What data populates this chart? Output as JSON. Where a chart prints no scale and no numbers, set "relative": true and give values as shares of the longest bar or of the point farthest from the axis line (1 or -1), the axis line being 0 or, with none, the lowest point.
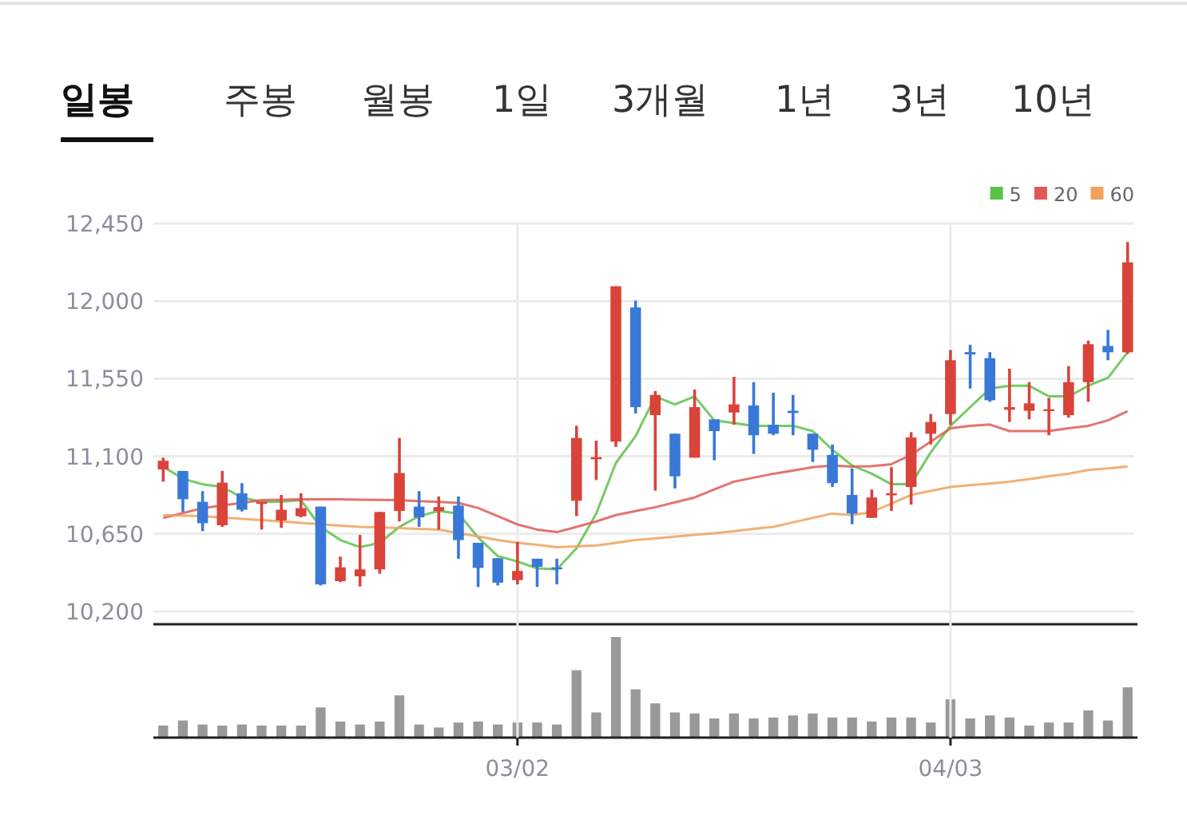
{
  "chart_data": [
    {
      "type": "candlestick",
      "annotations": [
        "일봉",
        "주봉",
        "월봉",
        "1일",
        "3개월",
        "1년",
        "3년",
        "10년"
      ],
      "categories": [
        null,
        null,
        null,
        null,
        null,
        null,
        null,
        null,
        null,
        null,
        null,
        null,
        null,
        null,
        null,
        null,
        null,
        null,
        null,
        null,
        null,
        null,
        null,
        null,
        null,
        null,
        null,
        null,
        null,
        null,
        null,
        null,
        null,
        null,
        null,
        null,
        null,
        null,
        null,
        null,
        null,
        null,
        null,
        null,
        null,
        null,
        null,
        null,
        null,
        null
      ],
      "ohlc": [
        [
          11024,
          11092,
          10953,
          11074
        ],
        [
          11015,
          11015,
          10777,
          10851
        ],
        [
          10836,
          10898,
          10666,
          10712
        ],
        [
          10700,
          11015,
          10691,
          10947
        ],
        [
          10885,
          10944,
          10780,
          10790
        ],
        [
          10824,
          10836,
          10675,
          10836
        ],
        [
          10728,
          10876,
          10685,
          10790
        ],
        [
          10752,
          10885,
          10746,
          10799
        ],
        [
          10808,
          10808,
          10351,
          10357
        ],
        [
          10376,
          10518,
          10370,
          10456
        ],
        [
          10404,
          10644,
          10345,
          10444
        ],
        [
          10444,
          10777,
          10419,
          10777
        ],
        [
          10783,
          11206,
          10722,
          11003
        ],
        [
          10808,
          10898,
          10691,
          10746
        ],
        [
          10783,
          10867,
          10675,
          10805
        ],
        [
          10814,
          10867,
          10506,
          10614
        ],
        [
          10598,
          10598,
          10342,
          10453
        ],
        [
          10509,
          10509,
          10351,
          10367
        ],
        [
          10382,
          10604,
          10357,
          10435
        ],
        [
          10506,
          10506,
          10342,
          10459
        ],
        [
          10456,
          10506,
          10357,
          10444
        ],
        [
          10842,
          11277,
          10753,
          11206
        ],
        [
          11083,
          11191,
          10962,
          11095
        ],
        [
          11185,
          12086,
          11154,
          12086
        ],
        [
          11963,
          12003,
          11348,
          11385
        ],
        [
          11339,
          11478,
          10901,
          11456
        ],
        [
          11231,
          11231,
          10913,
          10984
        ],
        [
          11092,
          11487,
          11092,
          11385
        ],
        [
          11314,
          11314,
          11077,
          11246
        ],
        [
          11354,
          11561,
          11283,
          11401
        ],
        [
          11395,
          11530,
          11114,
          11222
        ],
        [
          11283,
          11469,
          11222,
          11231
        ],
        [
          11364,
          11456,
          11222,
          11351
        ],
        [
          11231,
          11231,
          11067,
          11138
        ],
        [
          11108,
          11169,
          10922,
          10944
        ],
        [
          10876,
          11030,
          10706,
          10768
        ],
        [
          10743,
          10907,
          10743,
          10861
        ],
        [
          10876,
          11037,
          10783,
          10885
        ],
        [
          10922,
          11240,
          10820,
          11209
        ],
        [
          11231,
          11345,
          11169,
          11299
        ],
        [
          11345,
          11716,
          11283,
          11657
        ],
        [
          11704,
          11747,
          11493,
          11691
        ],
        [
          11669,
          11704,
          11416,
          11425
        ],
        [
          11370,
          11608,
          11299,
          11385
        ],
        [
          11364,
          11530,
          11314,
          11407
        ],
        [
          11364,
          11438,
          11222,
          11373
        ],
        [
          11339,
          11623,
          11324,
          11530
        ],
        [
          11530,
          11771,
          11416,
          11750
        ],
        [
          11740,
          11833,
          11657,
          11703
        ],
        [
          11703,
          12342,
          11694,
          12225
        ]
      ],
      "colors": [
        "#d9433a",
        "#3a78d8",
        "#3a78d8",
        "#d9433a",
        "#3a78d8",
        "#d9433a",
        "#d9433a",
        "#d9433a",
        "#3a78d8",
        "#d9433a",
        "#d9433a",
        "#d9433a",
        "#d9433a",
        "#3a78d8",
        "#d9433a",
        "#3a78d8",
        "#3a78d8",
        "#3a78d8",
        "#d9433a",
        "#3a78d8",
        "#3a78d8",
        "#d9433a",
        "#d9433a",
        "#d9433a",
        "#3a78d8",
        "#d9433a",
        "#3a78d8",
        "#d9433a",
        "#3a78d8",
        "#d9433a",
        "#3a78d8",
        "#3a78d8",
        "#3a78d8",
        "#3a78d8",
        "#3a78d8",
        "#3a78d8",
        "#d9433a",
        "#d9433a",
        "#d9433a",
        "#d9433a",
        "#d9433a",
        "#3a78d8",
        "#3a78d8",
        "#d9433a",
        "#d9433a",
        "#d9433a",
        "#d9433a",
        "#d9433a",
        "#3a78d8",
        "#d9433a"
      ],
      "series": [
        {
          "type": "line",
          "name": "5",
          "color": "#5cc24a",
          "values": [
            11040,
            10969,
            10938,
            10922,
            10861,
            10836,
            10836,
            10845,
            10691,
            10614,
            10573,
            10598,
            10691,
            10753,
            10783,
            10768,
            10629,
            10521,
            10490,
            10450,
            10444,
            10567,
            10768,
            11061,
            11216,
            11447,
            11401,
            11447,
            11308,
            11293,
            11277,
            11277,
            11277,
            11246,
            11138,
            11046,
            10999,
            10938,
            10938,
            11123,
            11277,
            11385,
            11493,
            11509,
            11509,
            11447,
            11447,
            11509,
            11555,
            11703
          ]
        },
        {
          "type": "line",
          "name": "20",
          "color": "#e05a55",
          "values": [
            10743,
            10770,
            10799,
            10815,
            10830,
            10845,
            10848,
            10850,
            10851,
            10850,
            10848,
            10847,
            10845,
            10840,
            10835,
            10830,
            10800,
            10753,
            10705,
            10675,
            10660,
            10691,
            10722,
            10759,
            10782,
            10805,
            10833,
            10861,
            10907,
            10953,
            10976,
            10999,
            11018,
            11037,
            11046,
            11040,
            11043,
            11055,
            11108,
            11185,
            11262,
            11277,
            11284,
            11246,
            11246,
            11246,
            11262,
            11277,
            11308,
            11361
          ]
        },
        {
          "type": "line",
          "name": "60",
          "color": "#f0a25c",
          "values": [
            10759,
            10756,
            10753,
            10745,
            10737,
            10730,
            10722,
            10714,
            10706,
            10698,
            10691,
            10687,
            10683,
            10679,
            10675,
            10655,
            10635,
            10615,
            10598,
            10586,
            10573,
            10578,
            10583,
            10598,
            10614,
            10624,
            10634,
            10644,
            10654,
            10666,
            10679,
            10691,
            10717,
            10743,
            10768,
            10759,
            10777,
            10826,
            10876,
            10899,
            10922,
            10932,
            10942,
            10953,
            10968,
            10984,
            10999,
            11020,
            11030,
            11040
          ]
        }
      ],
      "ylim": [
        10200,
        12450
      ],
      "yticks": [
        {
          "value": 10200,
          "label": "10,200"
        },
        {
          "value": 10650,
          "label": "10,650"
        },
        {
          "value": 11100,
          "label": "11,100"
        },
        {
          "value": 11550,
          "label": "11,550"
        },
        {
          "value": 12000,
          "label": "12,000"
        },
        {
          "value": 12450,
          "label": "12,450"
        }
      ],
      "grid": true,
      "legend": "top right",
      "tick_labels": "y"
    },
    {
      "type": "bar",
      "relative": true,
      "color": "#999999",
      "tick_labels": "x",
      "categories": [
        null,
        null,
        null,
        null,
        null,
        null,
        null,
        null,
        null,
        null,
        null,
        null,
        null,
        null,
        null,
        null,
        null,
        null,
        "03/02",
        null,
        null,
        null,
        null,
        null,
        null,
        null,
        null,
        null,
        null,
        null,
        null,
        null,
        null,
        null,
        null,
        null,
        null,
        null,
        null,
        null,
        "04/03",
        null,
        null,
        null,
        null,
        null,
        null,
        null,
        null,
        null
      ],
      "values": [
        0.12,
        0.17,
        0.13,
        0.12,
        0.13,
        0.12,
        0.12,
        0.12,
        0.3,
        0.16,
        0.13,
        0.16,
        0.42,
        0.13,
        0.1,
        0.15,
        0.16,
        0.13,
        0.15,
        0.15,
        0.13,
        0.67,
        0.25,
        1,
        0.48,
        0.34,
        0.25,
        0.24,
        0.19,
        0.24,
        0.19,
        0.2,
        0.22,
        0.24,
        0.2,
        0.2,
        0.16,
        0.2,
        0.2,
        0.15,
        0.38,
        0.19,
        0.22,
        0.2,
        0.12,
        0.15,
        0.15,
        0.27,
        0.17,
        0.5
      ]
    }
  ]
}
